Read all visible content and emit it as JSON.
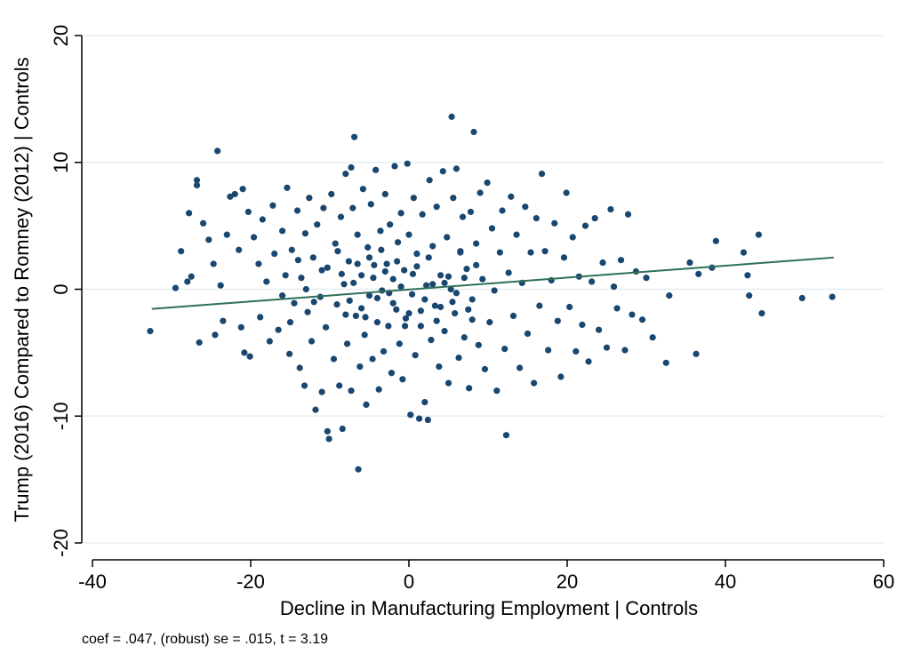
{
  "chart_data": {
    "type": "scatter",
    "title": "",
    "xlabel": "Decline in Manufacturing Employment | Controls",
    "ylabel": "Trump (2016) Compared to Romney (2012) | Controls",
    "xlim": [
      -40,
      60
    ],
    "ylim": [
      -20,
      20
    ],
    "xticks": [
      "-40",
      "-20",
      "0",
      "20",
      "40",
      "60"
    ],
    "yticks": [
      "-20",
      "-10",
      "0",
      "10",
      "20"
    ],
    "grid": "horizontal",
    "point_color": "#1a476f",
    "fit_line_color": "#2e6f5a",
    "fit_line": {
      "x": [
        -32.5,
        53.7
      ],
      "y": [
        -1.55,
        2.5
      ]
    },
    "note": "coef = .047, (robust) se = .015, t = 3.19",
    "series": [
      {
        "points": [
          [
            -32.7,
            -3.3
          ],
          [
            -29.5,
            0.1
          ],
          [
            -28.8,
            3.0
          ],
          [
            -28.0,
            0.6
          ],
          [
            -27.8,
            6.0
          ],
          [
            -27.5,
            1.0
          ],
          [
            -26.8,
            8.6
          ],
          [
            -26.8,
            8.2
          ],
          [
            -26.5,
            -4.2
          ],
          [
            -26.0,
            5.2
          ],
          [
            -25.3,
            3.9
          ],
          [
            -24.7,
            2.0
          ],
          [
            -24.2,
            10.9
          ],
          [
            -24.5,
            -3.6
          ],
          [
            -23.8,
            0.3
          ],
          [
            -23.5,
            -2.5
          ],
          [
            -23.0,
            4.3
          ],
          [
            -22.6,
            7.3
          ],
          [
            -22.0,
            7.5
          ],
          [
            -21.5,
            3.1
          ],
          [
            -21.0,
            7.9
          ],
          [
            -21.2,
            -3.0
          ],
          [
            -20.8,
            -5.0
          ],
          [
            -20.3,
            6.1
          ],
          [
            -20.1,
            -5.3
          ],
          [
            -19.6,
            4.1
          ],
          [
            -19.0,
            2.0
          ],
          [
            -18.8,
            -2.2
          ],
          [
            -18.5,
            5.5
          ],
          [
            -18.0,
            0.6
          ],
          [
            -17.6,
            -4.1
          ],
          [
            -17.2,
            6.6
          ],
          [
            -17.0,
            2.8
          ],
          [
            -16.5,
            -3.2
          ],
          [
            -16.0,
            4.6
          ],
          [
            -15.6,
            1.1
          ],
          [
            -15.4,
            8.0
          ],
          [
            -15.1,
            -5.1
          ],
          [
            -14.8,
            3.1
          ],
          [
            -14.5,
            -1.1
          ],
          [
            -14.1,
            6.2
          ],
          [
            -13.8,
            -6.2
          ],
          [
            -13.6,
            0.9
          ],
          [
            -13.2,
            -7.6
          ],
          [
            -13.1,
            4.4
          ],
          [
            -12.8,
            -1.8
          ],
          [
            -12.6,
            7.2
          ],
          [
            -12.3,
            -4.1
          ],
          [
            -12.1,
            2.5
          ],
          [
            -11.8,
            -9.5
          ],
          [
            -11.6,
            5.1
          ],
          [
            -11.2,
            -0.6
          ],
          [
            -11.0,
            -8.1
          ],
          [
            -10.8,
            6.4
          ],
          [
            -10.5,
            -3.0
          ],
          [
            -10.3,
            1.7
          ],
          [
            -10.3,
            -11.2
          ],
          [
            -10.1,
            -11.8
          ],
          [
            -9.8,
            7.5
          ],
          [
            -9.5,
            -5.5
          ],
          [
            -9.3,
            3.6
          ],
          [
            -9.1,
            -1.2
          ],
          [
            -8.8,
            -7.6
          ],
          [
            -8.6,
            5.7
          ],
          [
            -8.4,
            -11.0
          ],
          [
            -8.2,
            0.4
          ],
          [
            -8.0,
            9.1
          ],
          [
            -7.8,
            -4.3
          ],
          [
            -7.6,
            2.2
          ],
          [
            -7.3,
            9.6
          ],
          [
            -7.3,
            -8.0
          ],
          [
            -7.1,
            6.4
          ],
          [
            -6.9,
            12.0
          ],
          [
            -6.7,
            -2.1
          ],
          [
            -6.5,
            4.3
          ],
          [
            -6.4,
            -14.2
          ],
          [
            -6.2,
            -6.1
          ],
          [
            -6.0,
            1.1
          ],
          [
            -5.8,
            7.9
          ],
          [
            -5.6,
            -3.6
          ],
          [
            -5.4,
            -9.1
          ],
          [
            -5.2,
            3.3
          ],
          [
            -5.0,
            -0.5
          ],
          [
            -4.8,
            6.7
          ],
          [
            -4.6,
            -5.5
          ],
          [
            -4.4,
            1.9
          ],
          [
            -4.2,
            9.4
          ],
          [
            -4.0,
            -2.6
          ],
          [
            -3.8,
            -7.9
          ],
          [
            -3.6,
            4.6
          ],
          [
            -3.4,
            -0.1
          ],
          [
            -3.2,
            -4.9
          ],
          [
            -3.0,
            7.5
          ],
          [
            -2.8,
            2.0
          ],
          [
            -2.6,
            -2.9
          ],
          [
            -2.4,
            5.1
          ],
          [
            -2.2,
            -6.6
          ],
          [
            -2.0,
            0.8
          ],
          [
            -1.8,
            9.7
          ],
          [
            -1.6,
            -1.6
          ],
          [
            -1.4,
            3.7
          ],
          [
            -1.2,
            -4.3
          ],
          [
            -1.0,
            6.0
          ],
          [
            -0.8,
            -7.1
          ],
          [
            -0.6,
            1.5
          ],
          [
            -0.4,
            -2.3
          ],
          [
            -0.2,
            9.9
          ],
          [
            0.0,
            4.3
          ],
          [
            0.2,
            -9.9
          ],
          [
            0.4,
            -0.4
          ],
          [
            0.6,
            7.2
          ],
          [
            0.8,
            -5.2
          ],
          [
            1.0,
            2.8
          ],
          [
            1.3,
            -10.2
          ],
          [
            1.5,
            -2.9
          ],
          [
            1.7,
            5.9
          ],
          [
            2.0,
            -8.9
          ],
          [
            2.2,
            0.3
          ],
          [
            2.4,
            -10.3
          ],
          [
            2.6,
            8.6
          ],
          [
            2.8,
            -4.0
          ],
          [
            3.0,
            3.4
          ],
          [
            3.3,
            -1.3
          ],
          [
            3.5,
            6.5
          ],
          [
            3.8,
            -6.1
          ],
          [
            4.0,
            1.1
          ],
          [
            4.3,
            9.3
          ],
          [
            4.5,
            -3.3
          ],
          [
            4.8,
            4.1
          ],
          [
            5.0,
            -7.4
          ],
          [
            5.3,
            0.0
          ],
          [
            5.4,
            13.6
          ],
          [
            5.6,
            7.2
          ],
          [
            5.8,
            -1.9
          ],
          [
            6.0,
            9.5
          ],
          [
            6.3,
            -5.4
          ],
          [
            6.5,
            2.9
          ],
          [
            6.8,
            5.7
          ],
          [
            7.0,
            -3.8
          ],
          [
            7.3,
            1.6
          ],
          [
            7.6,
            -7.8
          ],
          [
            7.8,
            6.1
          ],
          [
            8.0,
            -0.8
          ],
          [
            8.2,
            12.4
          ],
          [
            8.5,
            3.6
          ],
          [
            8.8,
            -4.4
          ],
          [
            9.0,
            7.6
          ],
          [
            9.3,
            0.8
          ],
          [
            9.6,
            -6.3
          ],
          [
            9.9,
            8.4
          ],
          [
            10.2,
            -2.6
          ],
          [
            10.5,
            4.8
          ],
          [
            10.8,
            -0.1
          ],
          [
            11.1,
            -8.0
          ],
          [
            11.5,
            2.9
          ],
          [
            11.8,
            6.2
          ],
          [
            12.1,
            -4.7
          ],
          [
            12.3,
            -11.5
          ],
          [
            12.6,
            1.3
          ],
          [
            12.9,
            7.3
          ],
          [
            13.2,
            -2.1
          ],
          [
            13.6,
            4.3
          ],
          [
            14.0,
            -6.2
          ],
          [
            14.3,
            0.5
          ],
          [
            14.7,
            6.5
          ],
          [
            15.0,
            -3.5
          ],
          [
            15.4,
            2.9
          ],
          [
            15.8,
            -7.4
          ],
          [
            16.1,
            5.6
          ],
          [
            16.5,
            -1.3
          ],
          [
            16.8,
            9.1
          ],
          [
            17.2,
            3.0
          ],
          [
            17.6,
            -4.8
          ],
          [
            18.0,
            0.7
          ],
          [
            18.4,
            5.2
          ],
          [
            18.8,
            -2.5
          ],
          [
            19.2,
            -6.9
          ],
          [
            19.6,
            2.5
          ],
          [
            19.9,
            7.6
          ],
          [
            20.3,
            -1.4
          ],
          [
            20.7,
            4.1
          ],
          [
            21.1,
            -4.9
          ],
          [
            21.5,
            1.0
          ],
          [
            21.9,
            -2.8
          ],
          [
            22.3,
            5.0
          ],
          [
            22.7,
            -5.7
          ],
          [
            23.1,
            0.6
          ],
          [
            23.5,
            5.6
          ],
          [
            24.0,
            -3.2
          ],
          [
            24.5,
            2.1
          ],
          [
            25.0,
            -4.6
          ],
          [
            25.5,
            6.3
          ],
          [
            25.9,
            0.2
          ],
          [
            26.3,
            -1.5
          ],
          [
            26.8,
            2.3
          ],
          [
            27.3,
            -4.8
          ],
          [
            27.7,
            5.9
          ],
          [
            28.2,
            -2.0
          ],
          [
            28.7,
            1.4
          ],
          [
            29.5,
            -2.4
          ],
          [
            30.0,
            0.9
          ],
          [
            30.8,
            -3.8
          ],
          [
            32.5,
            -5.8
          ],
          [
            32.9,
            -0.5
          ],
          [
            35.5,
            2.1
          ],
          [
            36.3,
            -5.1
          ],
          [
            36.6,
            1.2
          ],
          [
            38.3,
            1.7
          ],
          [
            38.8,
            3.8
          ],
          [
            42.3,
            2.9
          ],
          [
            42.8,
            1.1
          ],
          [
            43.0,
            -0.5
          ],
          [
            44.2,
            4.3
          ],
          [
            44.6,
            -1.9
          ],
          [
            49.7,
            -0.7
          ],
          [
            53.5,
            -0.6
          ],
          [
            -9.0,
            3.0
          ],
          [
            -8.0,
            -2.0
          ],
          [
            -7.0,
            0.5
          ],
          [
            -6.0,
            -1.5
          ],
          [
            -5.0,
            2.5
          ],
          [
            -4.0,
            -0.7
          ],
          [
            -3.0,
            1.4
          ],
          [
            -2.0,
            -1.1
          ],
          [
            -1.0,
            0.2
          ],
          [
            0.0,
            -1.9
          ],
          [
            1.0,
            1.8
          ],
          [
            2.0,
            -0.8
          ],
          [
            3.0,
            0.4
          ],
          [
            4.0,
            -1.4
          ],
          [
            5.0,
            1.0
          ],
          [
            6.0,
            -0.3
          ],
          [
            7.0,
            0.9
          ],
          [
            8.0,
            -2.4
          ],
          [
            -11.0,
            1.5
          ],
          [
            -12.0,
            -1.0
          ],
          [
            -13.0,
            0.0
          ],
          [
            -14.0,
            2.3
          ],
          [
            -15.0,
            -2.6
          ],
          [
            -16.0,
            -0.5
          ],
          [
            -8.5,
            1.2
          ],
          [
            -7.5,
            -0.9
          ],
          [
            -6.5,
            2.0
          ],
          [
            -5.5,
            -2.2
          ],
          [
            -4.5,
            0.9
          ],
          [
            -3.5,
            3.1
          ],
          [
            -2.5,
            -0.3
          ],
          [
            -1.5,
            2.2
          ],
          [
            -0.5,
            -2.9
          ],
          [
            0.5,
            1.2
          ],
          [
            1.5,
            -1.7
          ],
          [
            2.5,
            2.5
          ],
          [
            3.5,
            -2.5
          ],
          [
            4.5,
            0.5
          ],
          [
            5.5,
            -1.0
          ],
          [
            6.5,
            3.0
          ],
          [
            7.5,
            -1.6
          ],
          [
            8.5,
            1.9
          ]
        ]
      }
    ]
  }
}
